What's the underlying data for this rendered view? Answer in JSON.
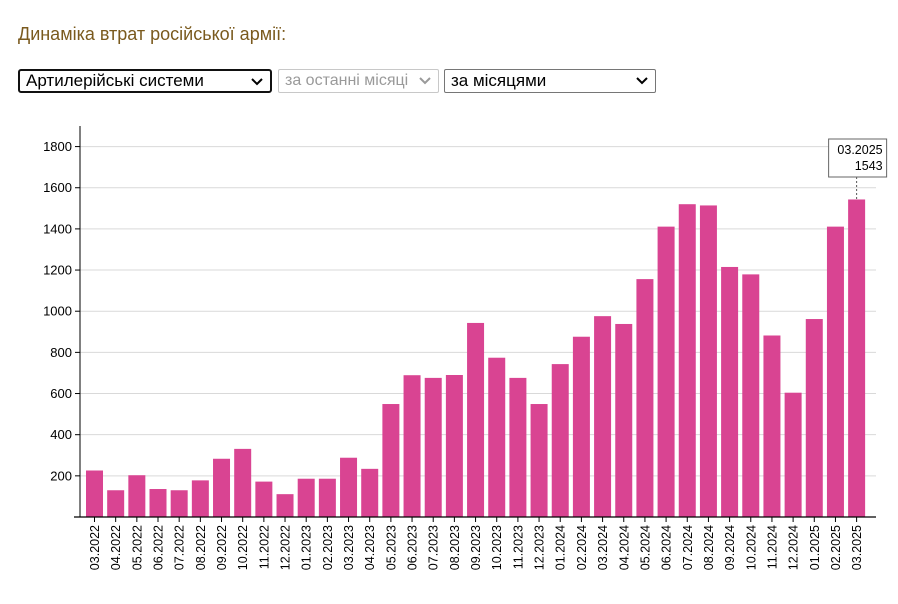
{
  "page": {
    "title": "Динаміка втрат російської армії:"
  },
  "controls": {
    "equipment_type": "Артилерійські системи",
    "period": "за останні місяці",
    "grouping": "за місяцями"
  },
  "colors": {
    "bar": "#d94492",
    "title": "#7a5a1e",
    "grid": "#d9d9d9",
    "axis": "#000000"
  },
  "chart_data": {
    "type": "bar",
    "categories": [
      "03.2022",
      "04.2022",
      "05.2022",
      "06.2022",
      "07.2022",
      "08.2022",
      "09.2022",
      "10.2022",
      "11.2022",
      "12.2022",
      "01.2023",
      "02.2023",
      "03.2023",
      "04.2023",
      "05.2023",
      "06.2023",
      "07.2023",
      "08.2023",
      "09.2023",
      "10.2023",
      "11.2023",
      "12.2023",
      "01.2024",
      "02.2024",
      "03.2024",
      "04.2024",
      "05.2024",
      "06.2024",
      "07.2024",
      "08.2024",
      "09.2024",
      "10.2024",
      "11.2024",
      "12.2024",
      "01.2025",
      "02.2025",
      "03.2025"
    ],
    "values": [
      226,
      130,
      203,
      136,
      130,
      178,
      283,
      331,
      172,
      111,
      186,
      186,
      288,
      234,
      549,
      689,
      676,
      690,
      943,
      774,
      676,
      549,
      743,
      876,
      976,
      938,
      1156,
      1411,
      1520,
      1514,
      1215,
      1179,
      882,
      604,
      962,
      1411,
      1543
    ],
    "ylim": [
      0,
      1900
    ],
    "yticks": [
      200,
      400,
      600,
      800,
      1000,
      1200,
      1400,
      1600,
      1800
    ],
    "grid": true,
    "tooltip": {
      "label": "03.2025",
      "value": "1543"
    }
  }
}
